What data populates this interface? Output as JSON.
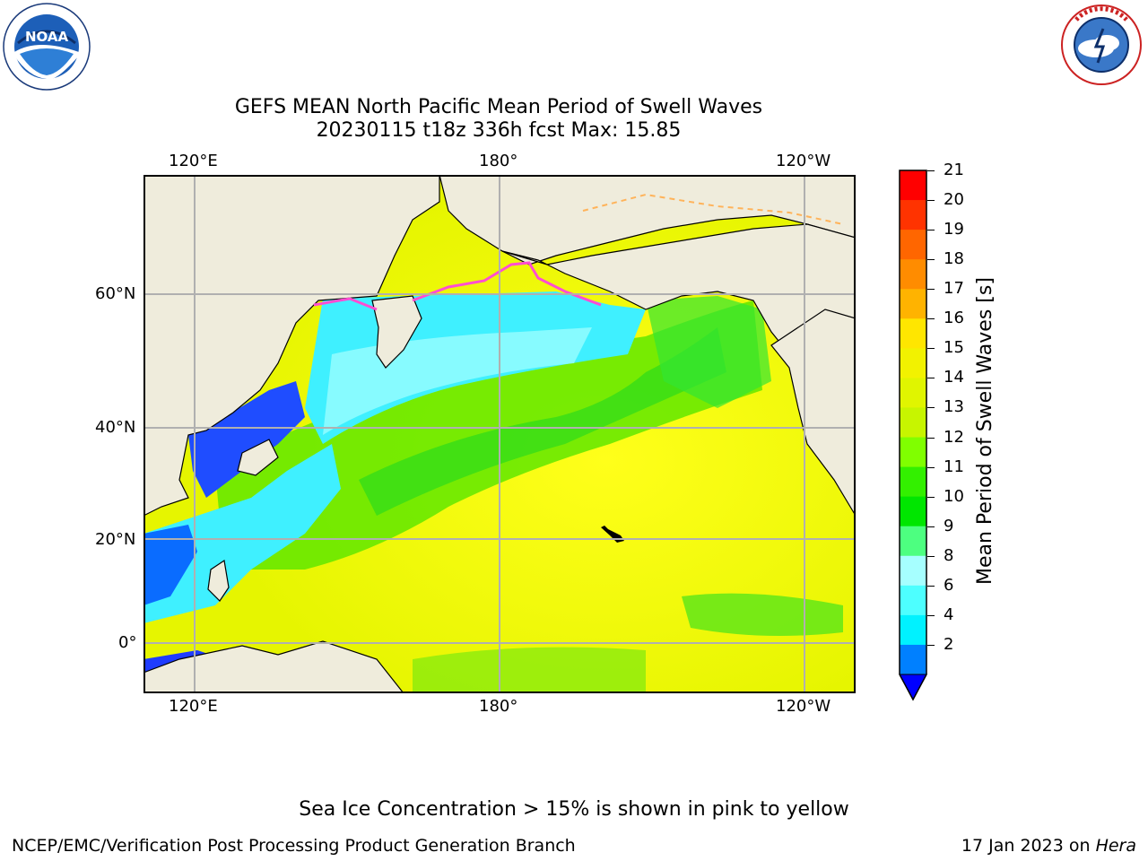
{
  "title": {
    "line1": "GEFS MEAN North Pacific Mean Period of Swell Waves",
    "line2": "20230115 t18z 336h fcst   Max: 15.85"
  },
  "logos": {
    "noaa": {
      "text": "NOAA",
      "ring_text": "NATIONAL OCEANIC AND ATMOSPHERIC ADMINISTRATION · U.S. DEPARTMENT OF COMMERCE"
    },
    "nws": {
      "ring_text": "NATIONAL WEATHER SERVICE"
    }
  },
  "map": {
    "lon_ticks_top": [
      "120°E",
      "180°",
      "120°W"
    ],
    "lon_ticks_bottom": [
      "120°E",
      "180°",
      "120°W"
    ],
    "lat_ticks": [
      "60°N",
      "40°N",
      "20°N",
      "0°"
    ],
    "colors": {
      "land": "#efecdc",
      "grid": "#b0b0b0",
      "coast": "#000000"
    }
  },
  "colorbar": {
    "title": "Mean Period of Swell Waves [s]",
    "labels": [
      "21",
      "20",
      "19",
      "18",
      "17",
      "16",
      "15",
      "14",
      "13",
      "12",
      "11",
      "10",
      "9",
      "8",
      "6",
      "4",
      "2"
    ],
    "colors": [
      "#ff0000",
      "#ff3300",
      "#ff6600",
      "#ff8c00",
      "#ffb300",
      "#ffe600",
      "#f2f200",
      "#e0f500",
      "#c7f500",
      "#80ff00",
      "#33f000",
      "#00e600",
      "#4dff80",
      "#a6ffff",
      "#4dffff",
      "#00f2ff",
      "#0080ff"
    ],
    "under_color": "#0000ff"
  },
  "notes": {
    "sea_ice": "Sea Ice Concentration > 15% is shown in pink to yellow",
    "footer_left": "NCEP/EMC/Verification Post Processing Product Generation Branch",
    "footer_right_date": "17 Jan 2023 on ",
    "footer_right_host": "Hera"
  }
}
